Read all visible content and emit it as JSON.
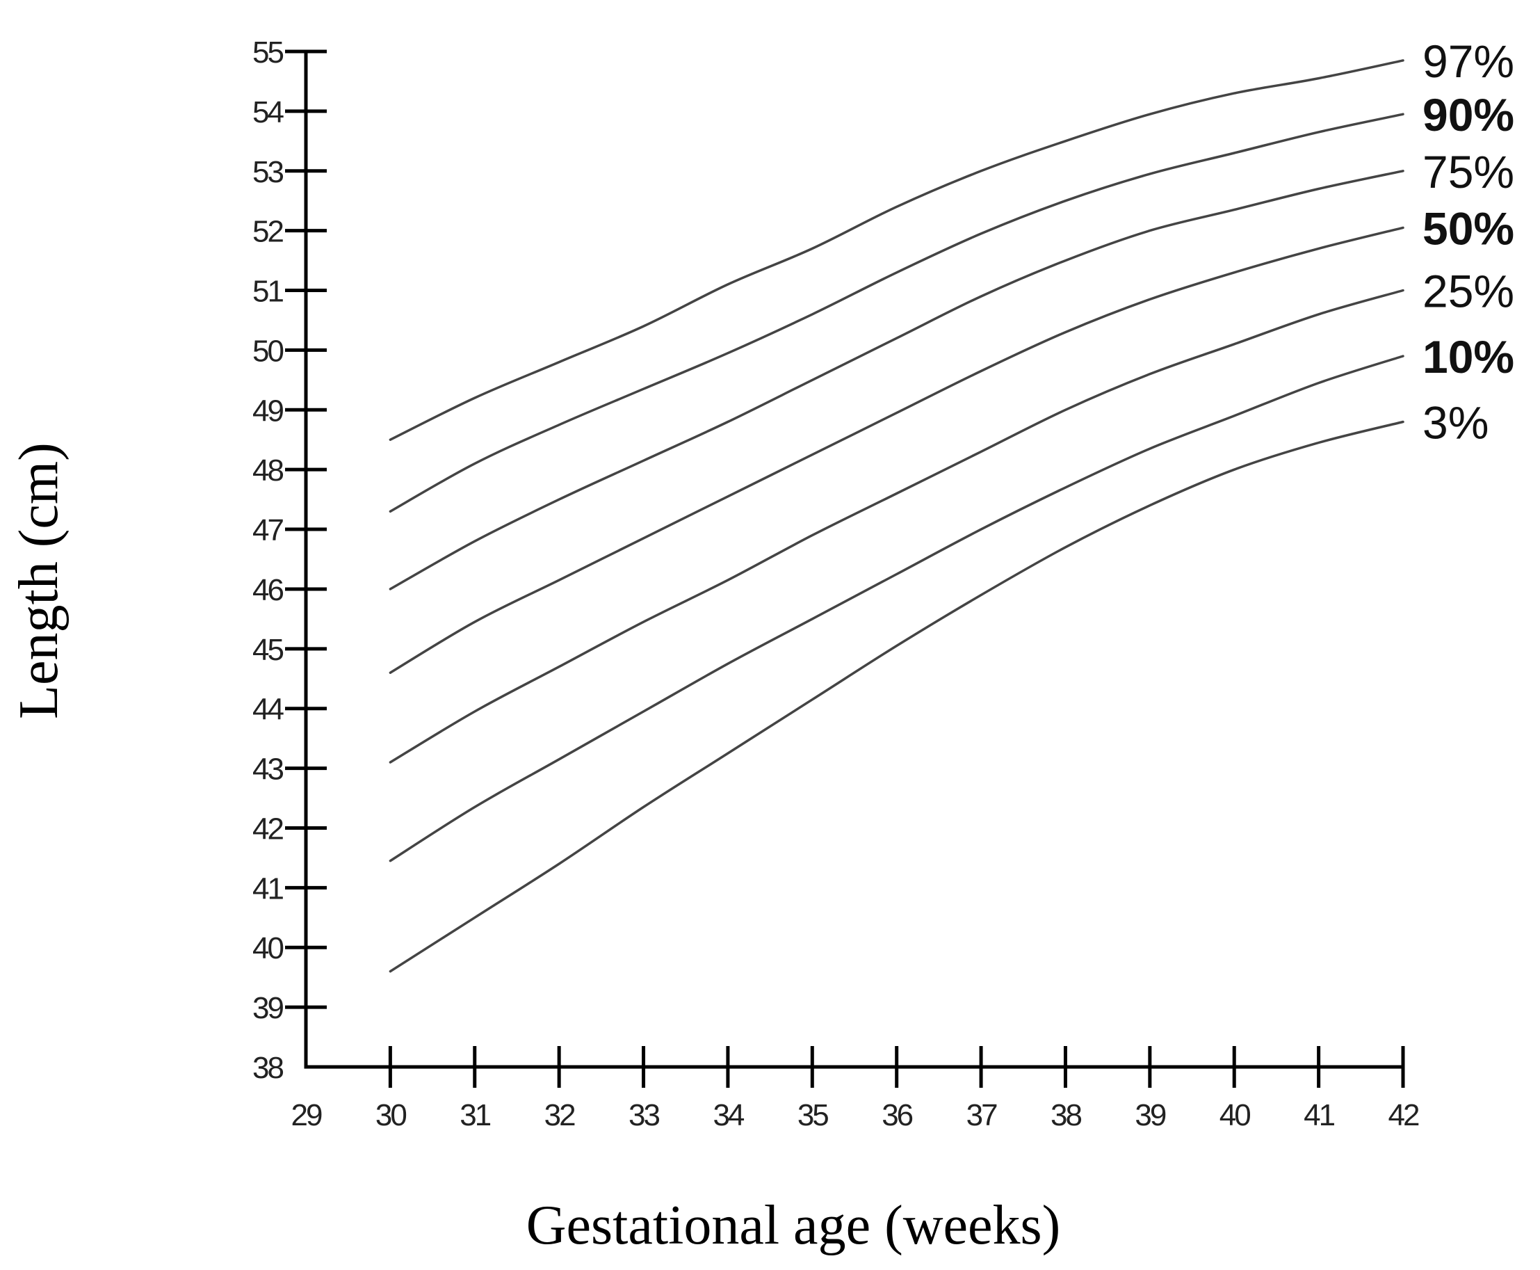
{
  "chart_data": {
    "type": "line",
    "xlabel": "Gestational age (weeks)",
    "ylabel": "Length (cm)",
    "xlim": [
      29,
      42
    ],
    "ylim": [
      38,
      55
    ],
    "x_ticks": [
      29,
      30,
      31,
      32,
      33,
      34,
      35,
      36,
      37,
      38,
      39,
      40,
      41,
      42
    ],
    "y_ticks": [
      38,
      39,
      40,
      41,
      42,
      43,
      44,
      45,
      46,
      47,
      48,
      49,
      50,
      51,
      52,
      53,
      54,
      55
    ],
    "grid": false,
    "legend": "right",
    "x": [
      30,
      31,
      32,
      33,
      34,
      35,
      36,
      37,
      38,
      39,
      40,
      41,
      42
    ],
    "series": [
      {
        "name": "97%",
        "bold": false,
        "values": [
          48.5,
          49.2,
          49.8,
          50.4,
          51.1,
          51.7,
          52.4,
          53.0,
          53.5,
          53.95,
          54.3,
          54.55,
          54.85
        ]
      },
      {
        "name": "90%",
        "bold": true,
        "values": [
          47.3,
          48.1,
          48.75,
          49.35,
          49.95,
          50.6,
          51.3,
          51.95,
          52.5,
          52.95,
          53.3,
          53.65,
          53.95
        ]
      },
      {
        "name": "75%",
        "bold": false,
        "values": [
          46.0,
          46.8,
          47.5,
          48.15,
          48.8,
          49.5,
          50.2,
          50.9,
          51.5,
          52.0,
          52.35,
          52.7,
          53.0
        ]
      },
      {
        "name": "50%",
        "bold": true,
        "values": [
          44.6,
          45.45,
          46.15,
          46.85,
          47.55,
          48.25,
          48.95,
          49.65,
          50.3,
          50.85,
          51.3,
          51.7,
          52.05
        ]
      },
      {
        "name": "25%",
        "bold": false,
        "values": [
          43.1,
          43.95,
          44.7,
          45.45,
          46.15,
          46.9,
          47.6,
          48.3,
          49.0,
          49.6,
          50.1,
          50.6,
          51.0
        ]
      },
      {
        "name": "10%",
        "bold": true,
        "values": [
          41.45,
          42.35,
          43.15,
          43.95,
          44.75,
          45.5,
          46.25,
          47.0,
          47.7,
          48.35,
          48.9,
          49.45,
          49.9
        ]
      },
      {
        "name": "3%",
        "bold": false,
        "values": [
          39.6,
          40.5,
          41.4,
          42.35,
          43.25,
          44.15,
          45.05,
          45.9,
          46.7,
          47.4,
          48.0,
          48.45,
          48.8
        ]
      }
    ]
  }
}
